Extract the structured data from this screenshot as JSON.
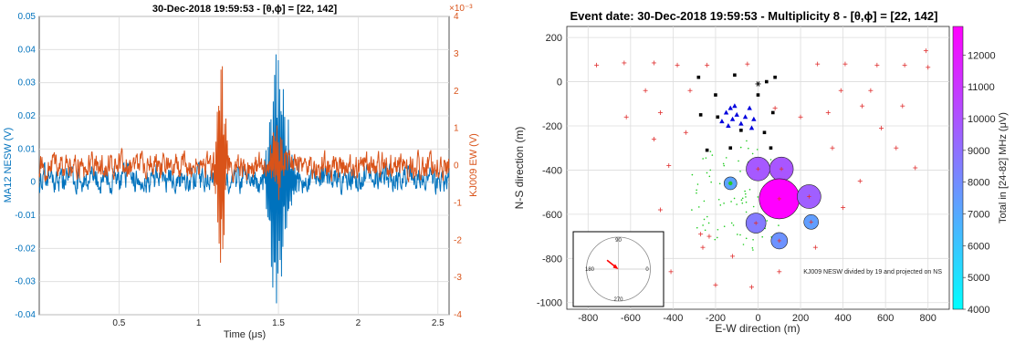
{
  "chart_data": [
    {
      "type": "line",
      "title": "30-Dec-2018 19:59:53 - [θ,ϕ] = [22, 142]",
      "xlabel": "Time (μs)",
      "ylabel_left": "MA12 NESW (V)",
      "ylabel_right": "KJ009 EW (V)",
      "right_exponent": "×10⁻³",
      "xlim": [
        0,
        2.57
      ],
      "ylim_left": [
        -0.04,
        0.05
      ],
      "ylim_right": [
        -4,
        4
      ],
      "x_ticks": [
        "0.5",
        "1",
        "1.5",
        "2",
        "2.5"
      ],
      "x_tick_values": [
        0.5,
        1,
        1.5,
        2,
        2.5
      ],
      "y_ticks_left": [
        "-0.04",
        "-0.03",
        "-0.02",
        "-0.01",
        "0",
        "0.01",
        "0.02",
        "0.03",
        "0.04",
        "0.05"
      ],
      "y_tick_values_left": [
        -0.04,
        -0.03,
        -0.02,
        -0.01,
        0,
        0.01,
        0.02,
        0.03,
        0.04,
        0.05
      ],
      "y_ticks_right": [
        "-4",
        "-3",
        "-2",
        "-1",
        "0",
        "1",
        "2",
        "3",
        "4"
      ],
      "y_tick_values_right": [
        -4,
        -3,
        -2,
        -1,
        0,
        1,
        2,
        3,
        4
      ],
      "grid": true,
      "series": [
        {
          "color": "#0072BD",
          "axis": "left",
          "noise_level": 0.004,
          "baseline": 0.001,
          "bursts": [
            {
              "center": 1.485,
              "width": 0.05,
              "amplitude": 0.04
            },
            {
              "center": 1.55,
              "width": 0.06,
              "amplitude": 0.012
            }
          ]
        },
        {
          "color": "#D95319",
          "axis": "right",
          "noise_level": 0.35,
          "baseline": 0.0,
          "bursts": [
            {
              "center": 1.14,
              "width": 0.03,
              "amplitude": 3.2
            },
            {
              "center": 1.49,
              "width": 0.04,
              "amplitude": 1.0
            }
          ]
        }
      ]
    },
    {
      "type": "scatter",
      "title": "Event date: 30-Dec-2018 19:59:53 - Multiplicity 8 - [θ,ϕ] = [22, 142]",
      "xlabel": "E-W direction (m)",
      "ylabel": "N-S direction (m)",
      "xlim": [
        -900,
        900
      ],
      "ylim": [
        -1030,
        250
      ],
      "x_ticks": [
        "-800",
        "-600",
        "-400",
        "-200",
        "0",
        "200",
        "400",
        "600",
        "800"
      ],
      "x_tick_values": [
        -800,
        -600,
        -400,
        -200,
        0,
        200,
        400,
        600,
        800
      ],
      "y_ticks": [
        "-1000",
        "-800",
        "-600",
        "-400",
        "-200",
        "0",
        "200"
      ],
      "y_tick_values": [
        -1000,
        -800,
        -600,
        -400,
        -200,
        0,
        200
      ],
      "grid": true,
      "annotation": "KJ009 NESW divided by 19 and projected on NS",
      "colorbar": {
        "label": "Total in [24-82] MHz (μV)",
        "range": [
          4000,
          12900
        ],
        "ticks": [
          "4000",
          "5000",
          "6000",
          "7000",
          "8000",
          "9000",
          "10000",
          "11000",
          "12000"
        ],
        "tick_values": [
          4000,
          5000,
          6000,
          7000,
          8000,
          9000,
          10000,
          11000,
          12000
        ],
        "colormap": [
          "#00FFFF",
          "#FF00FF"
        ]
      },
      "red_plus": [
        [
          -760,
          75
        ],
        [
          -630,
          85
        ],
        [
          -490,
          85
        ],
        [
          -380,
          75
        ],
        [
          -240,
          75
        ],
        [
          -50,
          80
        ],
        [
          280,
          80
        ],
        [
          410,
          80
        ],
        [
          560,
          75
        ],
        [
          690,
          75
        ],
        [
          790,
          140
        ],
        [
          800,
          65
        ],
        [
          -530,
          -40
        ],
        [
          -320,
          -40
        ],
        [
          390,
          -40
        ],
        [
          530,
          -40
        ],
        [
          -620,
          -160
        ],
        [
          -460,
          -140
        ],
        [
          80,
          -120
        ],
        [
          200,
          -160
        ],
        [
          330,
          -140
        ],
        [
          490,
          -110
        ],
        [
          680,
          -110
        ],
        [
          -490,
          -260
        ],
        [
          -340,
          -230
        ],
        [
          580,
          -210
        ],
        [
          -420,
          -380
        ],
        [
          350,
          -300
        ],
        [
          650,
          -300
        ],
        [
          740,
          -390
        ],
        [
          480,
          -450
        ],
        [
          -460,
          -580
        ],
        [
          400,
          -570
        ],
        [
          250,
          -500
        ],
        [
          -270,
          -690
        ],
        [
          -230,
          -700
        ],
        [
          -260,
          -750
        ],
        [
          -120,
          -790
        ],
        [
          270,
          -750
        ],
        [
          -410,
          -860
        ],
        [
          -200,
          -920
        ],
        [
          100,
          -860
        ],
        [
          -30,
          -930
        ]
      ],
      "black_squares": [
        [
          -280,
          20
        ],
        [
          -110,
          30
        ],
        [
          -200,
          -60
        ],
        [
          40,
          0
        ],
        [
          80,
          20
        ],
        [
          0,
          -60
        ],
        [
          -270,
          -150
        ],
        [
          -190,
          -160
        ],
        [
          70,
          -140
        ],
        [
          -80,
          -220
        ],
        [
          30,
          -230
        ],
        [
          -240,
          -310
        ],
        [
          -130,
          -300
        ],
        [
          60,
          -300
        ]
      ],
      "blue_triangles": [
        [
          -150,
          -140
        ],
        [
          -130,
          -120
        ],
        [
          -110,
          -110
        ],
        [
          -100,
          -150
        ],
        [
          -60,
          -160
        ],
        [
          -40,
          -120
        ],
        [
          -170,
          -180
        ],
        [
          -120,
          -170
        ],
        [
          -80,
          -190
        ],
        [
          -20,
          -170
        ],
        [
          -140,
          -200
        ],
        [
          -30,
          -210
        ]
      ],
      "black_star": [
        0,
        -10
      ],
      "circles": [
        {
          "x": 0,
          "y": -395,
          "value": 9800,
          "r": 13
        },
        {
          "x": 110,
          "y": -395,
          "value": 9900,
          "r": 13
        },
        {
          "x": 100,
          "y": -530,
          "value": 12900,
          "r": 22
        },
        {
          "x": 240,
          "y": -520,
          "value": 9600,
          "r": 13
        },
        {
          "x": -130,
          "y": -460,
          "value": 7200,
          "r": 7
        },
        {
          "x": -10,
          "y": -640,
          "value": 8600,
          "r": 11
        },
        {
          "x": 100,
          "y": -720,
          "value": 7800,
          "r": 9
        },
        {
          "x": 250,
          "y": -635,
          "value": 7400,
          "r": 8
        }
      ],
      "green_dots_region": {
        "cx": -100,
        "cy": -520,
        "rx": 230,
        "ry": 260,
        "count": 95
      },
      "polar_inset": {
        "labels": [
          "90",
          "180",
          "270",
          "0"
        ],
        "arrow_from_angle_deg": 142,
        "arrow_length": 0.45,
        "arrow_color": "#FF0000"
      }
    }
  ]
}
